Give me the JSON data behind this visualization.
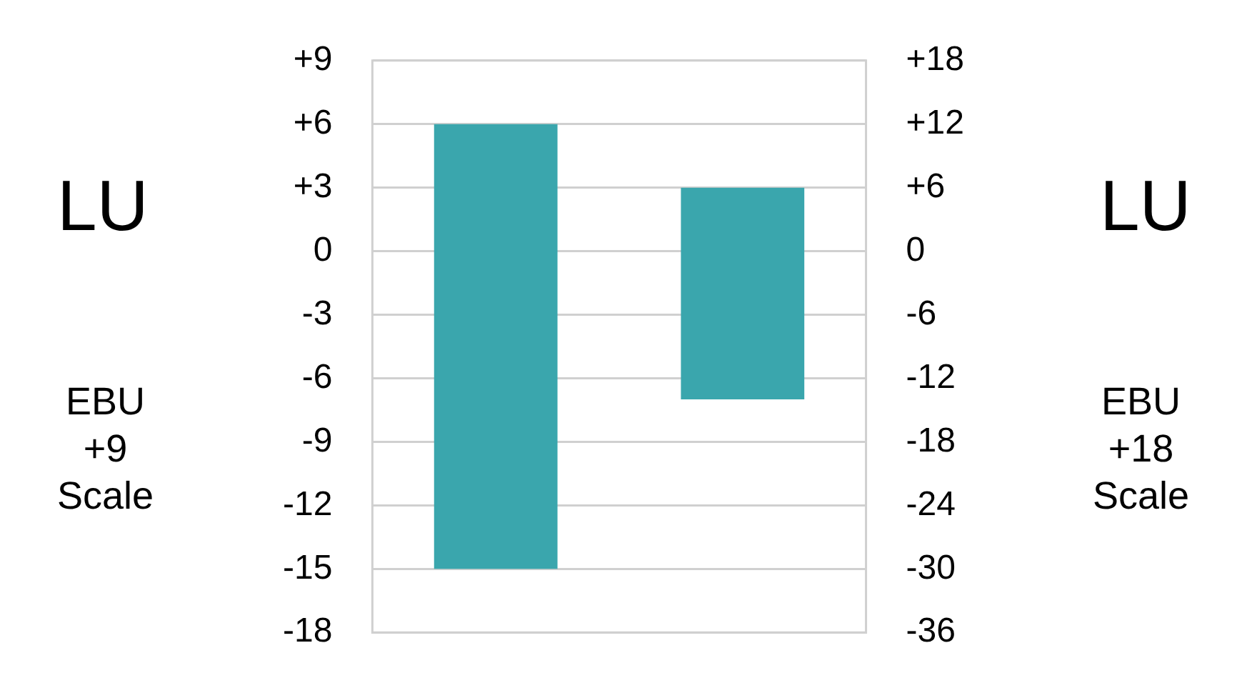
{
  "chart_data": {
    "type": "bar",
    "ylabel": "LU",
    "y2label": "LU",
    "annotations": [
      "EBU\n+9\nScale",
      "EBU\n+18\nScale"
    ],
    "categories": [
      null,
      null
    ],
    "series": [
      {
        "color": "#3aa6ad",
        "values": [
          21,
          null
        ],
        "base": [
          -15,
          null
        ]
      },
      {
        "color": "#3aa6ad",
        "values": [
          null,
          20
        ],
        "base": [
          null,
          -14
        ],
        "axis": "y2"
      }
    ],
    "ylim": [
      -18,
      9
    ],
    "yticks": [
      {
        "value": 9,
        "label": "+9"
      },
      {
        "value": 6,
        "label": "+6"
      },
      {
        "value": 3,
        "label": "+3"
      },
      0,
      -3,
      -6,
      -9,
      -12,
      -15,
      -18
    ],
    "y2lim": [
      -36,
      18
    ],
    "y2ticks": [
      {
        "value": 18,
        "label": "+18"
      },
      {
        "value": 12,
        "label": "+12"
      },
      {
        "value": 6,
        "label": "+6"
      },
      0,
      -6,
      -12,
      -18,
      -24,
      -30,
      -36
    ],
    "grid": "y",
    "legend": false
  }
}
